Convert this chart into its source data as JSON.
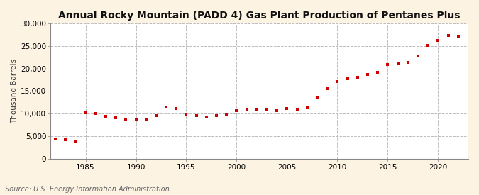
{
  "title": "Annual Rocky Mountain (PADD 4) Gas Plant Production of Pentanes Plus",
  "ylabel": "Thousand Barrels",
  "source": "Source: U.S. Energy Information Administration",
  "background_color": "#fdf3e3",
  "plot_background_color": "#ffffff",
  "marker_color": "#cc0000",
  "marker": "s",
  "markersize": 3.5,
  "linewidth": 0,
  "ylim": [
    0,
    30000
  ],
  "yticks": [
    0,
    5000,
    10000,
    15000,
    20000,
    25000,
    30000
  ],
  "xlim": [
    1981.5,
    2023
  ],
  "xticks": [
    1985,
    1990,
    1995,
    2000,
    2005,
    2010,
    2015,
    2020
  ],
  "grid_color": "#bbbbbb",
  "grid_linestyle": "--",
  "title_fontsize": 10,
  "label_fontsize": 7.5,
  "tick_fontsize": 7.5,
  "source_fontsize": 7,
  "years": [
    1982,
    1983,
    1984,
    1985,
    1986,
    1987,
    1988,
    1989,
    1990,
    1991,
    1992,
    1993,
    1994,
    1995,
    1996,
    1997,
    1998,
    1999,
    2000,
    2001,
    2002,
    2003,
    2004,
    2005,
    2006,
    2007,
    2008,
    2009,
    2010,
    2011,
    2012,
    2013,
    2014,
    2015,
    2016,
    2017,
    2018,
    2019,
    2020,
    2021,
    2022
  ],
  "values": [
    4400,
    4200,
    3900,
    10200,
    10100,
    9400,
    9100,
    8800,
    8700,
    8800,
    9500,
    11500,
    11200,
    9700,
    9500,
    9300,
    9500,
    9800,
    10700,
    10800,
    11000,
    10900,
    10700,
    11100,
    10900,
    11300,
    13700,
    15600,
    17100,
    17700,
    18100,
    18700,
    19100,
    20900,
    21100,
    21400,
    22800,
    25100,
    26200,
    27300,
    27200
  ]
}
